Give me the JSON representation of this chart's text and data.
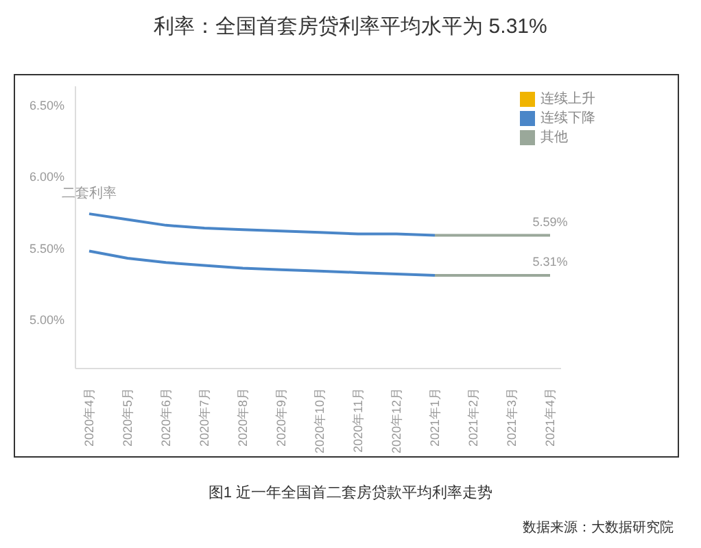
{
  "chart_data": {
    "type": "line",
    "title": "利率：全国首套房贷利率平均水平为 5.31%",
    "subtitle": "图1 近一年全国首二套房贷款平均利率走势",
    "categories": [
      "2020年4月",
      "2020年5月",
      "2020年6月",
      "2020年7月",
      "2020年8月",
      "2020年9月",
      "2020年10月",
      "2020年11月",
      "2020年12月",
      "2021年1月",
      "2021年2月",
      "2021年3月",
      "2021年4月"
    ],
    "series": [
      {
        "name": "连续上升",
        "color": "#f0b400",
        "values": [
          null,
          null,
          null,
          null,
          null,
          null,
          null,
          null,
          null,
          null,
          null,
          null,
          null
        ]
      },
      {
        "name": "连续下降",
        "color": "#4a86c8",
        "values": [
          5.74,
          5.7,
          5.66,
          5.64,
          5.63,
          5.62,
          5.61,
          5.6,
          5.6,
          5.59,
          null,
          null,
          null
        ]
      },
      {
        "name": "其他",
        "color": "#9aa89a",
        "values": [
          null,
          null,
          null,
          null,
          null,
          null,
          null,
          null,
          null,
          5.59,
          5.59,
          5.59,
          5.59
        ],
        "value_labels": [
          null,
          null,
          null,
          null,
          null,
          null,
          null,
          null,
          null,
          null,
          null,
          null,
          "5.59%"
        ]
      },
      {
        "color": "#4a86c8",
        "values": [
          5.48,
          5.43,
          5.4,
          5.38,
          5.36,
          5.35,
          5.34,
          5.33,
          5.32,
          5.31,
          null,
          null,
          null
        ]
      },
      {
        "color": "#9aa89a",
        "values": [
          null,
          null,
          null,
          null,
          null,
          null,
          null,
          null,
          null,
          5.31,
          5.31,
          5.31,
          5.31
        ],
        "value_labels": [
          null,
          null,
          null,
          null,
          null,
          null,
          null,
          null,
          null,
          null,
          null,
          null,
          "5.31%"
        ]
      }
    ],
    "ylim": [
      4.66,
      6.63
    ],
    "yticks": [
      {
        "value": 5.0,
        "label": "5.00%"
      },
      {
        "value": 5.5,
        "label": "5.50%"
      },
      {
        "value": 6.0,
        "label": "6.00%"
      },
      {
        "value": 6.5,
        "label": "6.50%"
      }
    ],
    "grid": false,
    "legend": "top right",
    "marker": "none",
    "line_style": "solid",
    "annotations": [
      {
        "text": "二套利率",
        "x": "2020年4月",
        "y": 5.74
      },
      "数据来源：大数据研究院"
    ]
  }
}
